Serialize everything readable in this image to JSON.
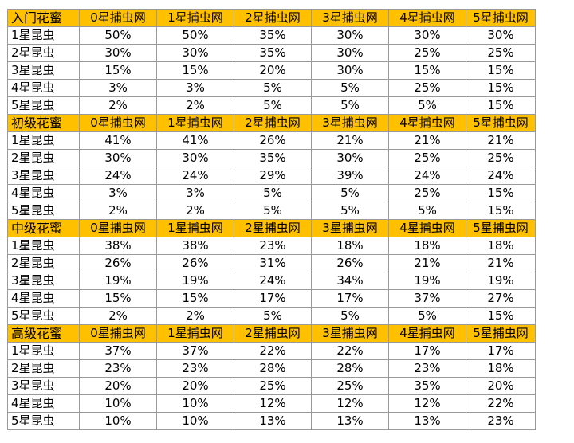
{
  "table": {
    "columns": [
      "0星捕虫网",
      "1星捕虫网",
      "2星捕虫网",
      "3星捕虫网",
      "4星捕虫网",
      "5星捕虫网"
    ],
    "sections": [
      {
        "title": "入门花蜜",
        "rows": [
          {
            "label": "1星昆虫",
            "values": [
              "50%",
              "50%",
              "35%",
              "30%",
              "30%",
              "30%"
            ]
          },
          {
            "label": "2星昆虫",
            "values": [
              "30%",
              "30%",
              "35%",
              "30%",
              "25%",
              "25%"
            ]
          },
          {
            "label": "3星昆虫",
            "values": [
              "15%",
              "15%",
              "20%",
              "30%",
              "15%",
              "15%"
            ]
          },
          {
            "label": "4星昆虫",
            "values": [
              "3%",
              "3%",
              "5%",
              "5%",
              "25%",
              "15%"
            ]
          },
          {
            "label": "5星昆虫",
            "values": [
              "2%",
              "2%",
              "5%",
              "5%",
              "5%",
              "15%"
            ]
          }
        ]
      },
      {
        "title": "初级花蜜",
        "rows": [
          {
            "label": "1星昆虫",
            "values": [
              "41%",
              "41%",
              "26%",
              "21%",
              "21%",
              "21%"
            ]
          },
          {
            "label": "2星昆虫",
            "values": [
              "30%",
              "30%",
              "35%",
              "30%",
              "25%",
              "25%"
            ]
          },
          {
            "label": "3星昆虫",
            "values": [
              "24%",
              "24%",
              "29%",
              "39%",
              "24%",
              "24%"
            ]
          },
          {
            "label": "4星昆虫",
            "values": [
              "3%",
              "3%",
              "5%",
              "5%",
              "25%",
              "15%"
            ]
          },
          {
            "label": "5星昆虫",
            "values": [
              "2%",
              "2%",
              "5%",
              "5%",
              "5%",
              "15%"
            ]
          }
        ]
      },
      {
        "title": "中级花蜜",
        "rows": [
          {
            "label": "1星昆虫",
            "values": [
              "38%",
              "38%",
              "23%",
              "18%",
              "18%",
              "18%"
            ]
          },
          {
            "label": "2星昆虫",
            "values": [
              "26%",
              "26%",
              "31%",
              "26%",
              "21%",
              "21%"
            ]
          },
          {
            "label": "3星昆虫",
            "values": [
              "19%",
              "19%",
              "24%",
              "34%",
              "19%",
              "19%"
            ]
          },
          {
            "label": "4星昆虫",
            "values": [
              "15%",
              "15%",
              "17%",
              "17%",
              "37%",
              "27%"
            ]
          },
          {
            "label": "5星昆虫",
            "values": [
              "2%",
              "2%",
              "5%",
              "5%",
              "5%",
              "15%"
            ]
          }
        ]
      },
      {
        "title": "高级花蜜",
        "rows": [
          {
            "label": "1星昆虫",
            "values": [
              "37%",
              "37%",
              "22%",
              "22%",
              "17%",
              "17%"
            ]
          },
          {
            "label": "2星昆虫",
            "values": [
              "23%",
              "23%",
              "28%",
              "28%",
              "23%",
              "18%"
            ]
          },
          {
            "label": "3星昆虫",
            "values": [
              "20%",
              "20%",
              "25%",
              "25%",
              "35%",
              "20%"
            ]
          },
          {
            "label": "4星昆虫",
            "values": [
              "10%",
              "10%",
              "12%",
              "12%",
              "12%",
              "22%"
            ]
          },
          {
            "label": "5星昆虫",
            "values": [
              "10%",
              "10%",
              "13%",
              "13%",
              "13%",
              "23%"
            ]
          }
        ]
      }
    ]
  },
  "colors": {
    "header_fill": "#ffc000",
    "grid_line": "#9a9a9a",
    "background": "#ffffff"
  }
}
